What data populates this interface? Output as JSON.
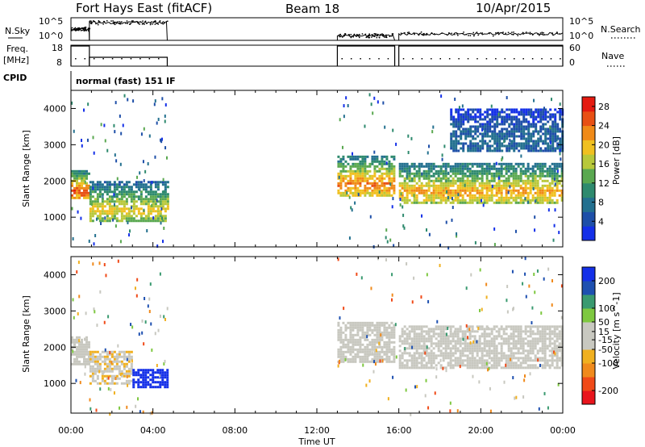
{
  "header": {
    "station": "Fort Hays East (fitACF)",
    "beam": "Beam 18",
    "date": "10/Apr/2015"
  },
  "top_panels": {
    "nsky_label": "N.Sky",
    "nsky_ticks": [
      "10^5",
      "10^0"
    ],
    "nsearch_label": "N.Search",
    "nsearch_ticks": [
      "10^5",
      "10^0"
    ],
    "freq_label": "Freq.",
    "freq_unit": "[MHz]",
    "freq_ticks": [
      "18",
      "8"
    ],
    "nave_label": "Nave",
    "nave_ticks": [
      "60",
      "0"
    ],
    "cpid_label": "CPID",
    "cpid_value": "normal (fast) 151 IF"
  },
  "colors": {
    "power_scale": [
      "#1430e8",
      "#1e4fa8",
      "#23708f",
      "#2e8a6e",
      "#5aa850",
      "#b8c83a",
      "#f0c020",
      "#f08a18",
      "#e85014",
      "#e41a10"
    ],
    "velocity_scale": [
      "#e8141c",
      "#f04a18",
      "#f08a1c",
      "#f0b020",
      "#c8c8c0",
      "#c8c8c0",
      "#7ec840",
      "#3a9a70",
      "#1e50b0",
      "#1430e8"
    ]
  },
  "chart_data": [
    {
      "type": "heatmap",
      "name": "power",
      "title": "",
      "xlabel": "Time UT",
      "ylabel": "Slant Range [km]",
      "x_ticks": [
        "00:00",
        "04:00",
        "08:00",
        "12:00",
        "16:00",
        "20:00",
        "00:00"
      ],
      "xlim_hours": [
        0,
        24
      ],
      "y_ticks": [
        1000,
        2000,
        3000,
        4000
      ],
      "ylim_km": [
        180,
        4500
      ],
      "colorbar_label": "Power [dB]",
      "colorbar_ticks": [
        4,
        8,
        12,
        16,
        20,
        24,
        28
      ],
      "colorbar_range": [
        0,
        30
      ],
      "data_gaps_hours": [
        [
          4.7,
          13.0
        ],
        [
          15.85,
          16.0
        ]
      ],
      "echo_bands": [
        {
          "t0": 0.0,
          "t1": 0.9,
          "range_km": [
            1500,
            2300
          ],
          "power_db": 22
        },
        {
          "t0": 0.9,
          "t1": 4.7,
          "range_km": [
            900,
            2000
          ],
          "power_db": 16
        },
        {
          "t0": 13.0,
          "t1": 15.8,
          "range_km": [
            1600,
            2700
          ],
          "power_db": 20
        },
        {
          "t0": 16.0,
          "t1": 24.0,
          "range_km": [
            1400,
            2500
          ],
          "power_db": 18
        },
        {
          "t0": 18.5,
          "t1": 24.0,
          "range_km": [
            2800,
            4000
          ],
          "power_db": 6
        }
      ]
    },
    {
      "type": "heatmap",
      "name": "velocity",
      "title": "",
      "xlabel": "Time UT",
      "ylabel": "Slant Range [km]",
      "x_ticks": [
        "00:00",
        "04:00",
        "08:00",
        "12:00",
        "16:00",
        "20:00",
        "00:00"
      ],
      "xlim_hours": [
        0,
        24
      ],
      "y_ticks": [
        1000,
        2000,
        3000,
        4000
      ],
      "ylim_km": [
        180,
        4500
      ],
      "colorbar_label": "Velocity [m s^-1]",
      "colorbar_ticks": [
        200,
        100,
        50,
        15,
        -15,
        -50,
        -100,
        -200
      ],
      "colorbar_range": [
        -250,
        250
      ],
      "echo_bands": [
        {
          "t0": 0.0,
          "t1": 0.9,
          "range_km": [
            1500,
            2300
          ],
          "velocity": -20
        },
        {
          "t0": 0.9,
          "t1": 3.0,
          "range_km": [
            1000,
            1900
          ],
          "velocity": -40
        },
        {
          "t0": 3.0,
          "t1": 4.7,
          "range_km": [
            900,
            1400
          ],
          "velocity": 220
        },
        {
          "t0": 13.0,
          "t1": 15.8,
          "range_km": [
            1600,
            2700
          ],
          "velocity": 0
        },
        {
          "t0": 16.0,
          "t1": 24.0,
          "range_km": [
            1400,
            2600
          ],
          "velocity": 0
        }
      ]
    }
  ]
}
